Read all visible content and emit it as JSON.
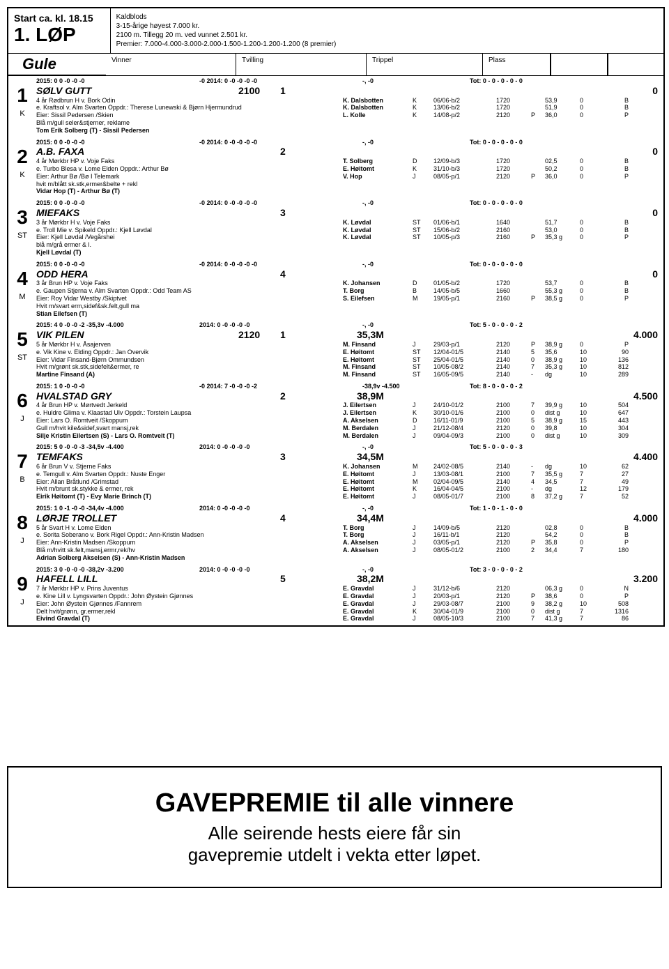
{
  "header": {
    "start": "Start ca. kl. 18.15",
    "lop": "1. LØP",
    "lines": [
      "Kaldblods",
      "3-15-årige høyest 7.000 kr.",
      "2100 m. Tillegg 20 m. ved vunnet 2.501 kr.",
      "Premier: 7.000-4.000-3.000-2.000-1.500-1.200-1.200-1.200 (8 premier)"
    ]
  },
  "bets": {
    "color": "Gule",
    "vinner": "Vinner",
    "tvilling": "Tvilling",
    "trippel": "Trippel",
    "plass": "Plass"
  },
  "entries": [
    {
      "num": "1",
      "letter": "K",
      "stat1": "2015:   0    0    -0    -0    -0",
      "stat2": "-0      2014:    0    -0    -0    -0    -0",
      "stat3": "-,           -0",
      "stat4": "Tot: 0 - 0 - 0 - 0 - 0",
      "name": "SØLV GUTT",
      "post": "2100",
      "draw": "1",
      "odds": "0",
      "info": [
        "4 år Rødbrun H v. Bork Odin",
        "e. Kraftsol v. Alm Svarten  Oppdr.: Therese Lunewski & Bjørn Hjermundrud",
        "Eier: Sissil Pedersen /Skien",
        "Blå m/gull seler&stjerner, reklame"
      ],
      "trainer": "Tom Erik Solberg (T) - Sissil Pedersen",
      "results": [
        [
          "K. Dalsbotten",
          "K",
          "06/06-b/2",
          "1720",
          "",
          "53,9",
          "0",
          "B"
        ],
        [
          "K. Dalsbotten",
          "K",
          "13/06-b/2",
          "1720",
          "",
          "51,9",
          "0",
          "B"
        ],
        [
          "L. Kolle",
          "K",
          "14/08-p/2",
          "2120",
          "P",
          "36,0",
          "0",
          "P"
        ]
      ]
    },
    {
      "num": "2",
      "letter": "K",
      "stat1": "2015:   0    0    -0    -0    -0",
      "stat2": "-0      2014:    0    -0    -0    -0    -0",
      "stat3": "-,           -0",
      "stat4": "Tot: 0 - 0 - 0 - 0 - 0",
      "name": "A.B. FAXA",
      "post": "",
      "draw": "2",
      "odds": "0",
      "info": [
        "4 år Mørkbr HP v. Voje Faks",
        "e. Turbo Blesa v. Lome Elden  Oppdr.: Arthur Bø",
        "Eier: Arthur Bø /Bø I Telemark",
        "hvit m/blått sk.stk,ermer&belte + rekl"
      ],
      "trainer": "Vidar Hop (T) - Arthur Bø (T)",
      "results": [
        [
          "T. Solberg",
          "D",
          "12/09-b/3",
          "1720",
          "",
          "02,5",
          "0",
          "B"
        ],
        [
          "E. Høitomt",
          "K",
          "31/10-b/3",
          "1720",
          "",
          "50,2",
          "0",
          "B"
        ],
        [
          "V. Hop",
          "J",
          "08/05-p/1",
          "2120",
          "P",
          "36,0",
          "0",
          "P"
        ]
      ]
    },
    {
      "num": "3",
      "letter": "ST",
      "stat1": "2015:   0    0    -0    -0    -0",
      "stat2": "-0      2014:    0    -0    -0    -0    -0",
      "stat3": "-,           -0",
      "stat4": "Tot: 0 - 0 - 0 - 0 - 0",
      "name": "MIEFAKS",
      "post": "",
      "draw": "3",
      "odds": "0",
      "info": [
        "3 år Mørkbr H v. Voje Faks",
        "e. Troll Mie v. Spikeld  Oppdr.: Kjell Løvdal",
        "Eier: Kjell Løvdal /Vegårshei",
        "blå m/grå ermer & l."
      ],
      "trainer": "Kjell Løvdal (T)",
      "results": [
        [
          "K. Løvdal",
          "ST",
          "01/06-b/1",
          "1640",
          "",
          "51,7",
          "0",
          "B"
        ],
        [
          "K. Løvdal",
          "ST",
          "15/06-b/2",
          "2160",
          "",
          "53,0",
          "0",
          "B"
        ],
        [
          "K. Løvdal",
          "ST",
          "10/05-p/3",
          "2160",
          "P",
          "35,3 g",
          "0",
          "P"
        ]
      ]
    },
    {
      "num": "4",
      "letter": "M",
      "stat1": "2015:   0    0    -0    -0    -0",
      "stat2": "-0      2014:    0    -0    -0    -0    -0",
      "stat3": "-,           -0",
      "stat4": "Tot: 0 - 0 - 0 - 0 - 0",
      "name": "ODD HERA",
      "post": "",
      "draw": "4",
      "odds": "0",
      "info": [
        "3 år Brun HP v. Voje Faks",
        "e. Gaupen Stjerna v. Alm Svarten  Oppdr.: Odd Team AS",
        "Eier: Roy Vidar Westby /Skiptvet",
        "Hvit m/svart erm,sidef&sk.felt,gull ma"
      ],
      "trainer": "Stian Eilefsen (T)",
      "results": [
        [
          "K. Johansen",
          "D",
          "01/05-b/2",
          "1720",
          "",
          "53,7",
          "0",
          "B"
        ],
        [
          "T. Borg",
          "B",
          "14/05-b/5",
          "1660",
          "",
          "55,3 g",
          "0",
          "B"
        ],
        [
          "S. Eilefsen",
          "M",
          "19/05-p/1",
          "2160",
          "P",
          "38,5 g",
          "0",
          "P"
        ]
      ]
    },
    {
      "num": "5",
      "letter": "ST",
      "stat1": "2015:   4    0    -0    -0    -2    -35,3v    -4.000",
      "stat2": "2014:    0    -0    -0    -0    -0",
      "stat3": "-,           -0",
      "stat4": "Tot: 5 - 0 - 0 - 0 - 2",
      "name": "VIK PILEN",
      "post": "2120",
      "draw": "1",
      "dist": "35,3M",
      "odds": "4.000",
      "info": [
        "5 år Mørkbr H v. Åsajerven",
        "e. Vik Kine v. Elding  Oppdr.: Jan Overvik",
        "Eier: Vidar Finsand-Bjørn Ommundsen",
        "Hvit m/grønt sk.stk,sidefelt&ermer, re"
      ],
      "trainer": "Martine Finsand (A)",
      "results": [
        [
          "M. Finsand",
          "J",
          "29/03-p/1",
          "2120",
          "P",
          "38,9 g",
          "0",
          "P"
        ],
        [
          "E. Høitomt",
          "ST",
          "12/04-01/5",
          "2140",
          "5",
          "35,6",
          "10",
          "90"
        ],
        [
          "E. Høitomt",
          "ST",
          "25/04-01/5",
          "2140",
          "0",
          "38,9 g",
          "10",
          "136"
        ],
        [
          "M. Finsand",
          "ST",
          "10/05-08/2",
          "2140",
          "7",
          "35,3 g",
          "10",
          "812"
        ],
        [
          "M. Finsand",
          "ST",
          "16/05-09/5",
          "2140",
          "-",
          "dg",
          "10",
          "289"
        ]
      ]
    },
    {
      "num": "6",
      "letter": "J",
      "stat1": "2015:   1    0    -0    -0    -0",
      "stat2": "-0      2014:    7    -0    -0    -0    -2",
      "stat3": "-38,9v      -4.500",
      "stat4": "Tot: 8 - 0 - 0 - 0 - 2",
      "name": "HVALSTAD GRY",
      "post": "",
      "draw": "2",
      "dist": "38,9M",
      "odds": "4.500",
      "info": [
        "4 år Brun HP v. Mørtvedt Jerkeld",
        "e. Huldre Glima v. Klaastad Ulv  Oppdr.: Torstein Laupsa",
        "Eier: Lars O. Romtveit /Skoppum",
        "Gull m/hvit kile&sidef,svart mansj,rek"
      ],
      "trainer": "Silje Kristin Eilertsen (S) - Lars O. Romtveit (T)",
      "results": [
        [
          "J. Eilertsen",
          "J",
          "24/10-01/2",
          "2100",
          "7",
          "39,9 g",
          "10",
          "504"
        ],
        [
          "J. Eilertsen",
          "K",
          "30/10-01/6",
          "2100",
          "0",
          "dist g",
          "10",
          "647"
        ],
        [
          "A. Akselsen",
          "D",
          "16/11-01/9",
          "2100",
          "5",
          "38,9 g",
          "15",
          "443"
        ],
        [
          "M. Berdalen",
          "J",
          "21/12-08/4",
          "2120",
          "0",
          "39,8",
          "10",
          "304"
        ],
        [
          "M. Berdalen",
          "J",
          "09/04-09/3",
          "2100",
          "0",
          "dist g",
          "10",
          "309"
        ]
      ]
    },
    {
      "num": "7",
      "letter": "B",
      "stat1": "2015:   5    0    -0    -0    -3    -34,5v    -4.400",
      "stat2": "2014:    0    -0    -0    -0    -0",
      "stat3": "-,           -0",
      "stat4": "Tot: 5 - 0 - 0 - 0 - 3",
      "name": "TEMFAKS",
      "post": "",
      "draw": "3",
      "dist": "34,5M",
      "odds": "4.400",
      "info": [
        "6 år Brun V v. Stjerne Faks",
        "e. Temgull v. Alm Svarten  Oppdr.: Nuste Enger",
        "Eier: Allan Bråtlund /Grimstad",
        "Hvit m/brunt sk.stykke & ermer, rek"
      ],
      "trainer": "Eirik Høitomt (T) - Evy Marie Brinch (T)",
      "results": [
        [
          "K. Johansen",
          "M",
          "24/02-08/5",
          "2140",
          "-",
          "dg",
          "10",
          "62"
        ],
        [
          "E. Høitomt",
          "J",
          "13/03-08/1",
          "2100",
          "7",
          "35,5 g",
          "7",
          "27"
        ],
        [
          "E. Høitomt",
          "M",
          "02/04-09/5",
          "2140",
          "4",
          "34,5",
          "7",
          "49"
        ],
        [
          "E. Høitomt",
          "K",
          "16/04-04/5",
          "2100",
          "-",
          "dg",
          "12",
          "179"
        ],
        [
          "E. Høitomt",
          "J",
          "08/05-01/7",
          "2100",
          "8",
          "37,2 g",
          "7",
          "52"
        ]
      ]
    },
    {
      "num": "8",
      "letter": "J",
      "stat1": "2015:   1    0    -1    -0    -0    -34,4v    -4.000",
      "stat2": "2014:    0    -0    -0    -0    -0",
      "stat3": "-,           -0",
      "stat4": "Tot: 1 - 0 - 1 - 0 - 0",
      "name": "LØRJE TROLLET",
      "post": "",
      "draw": "4",
      "dist": "34,4M",
      "odds": "4.000",
      "info": [
        "5 år Svart H v. Lome Elden",
        "e. Sorita Soberano v. Bork Rigel  Oppdr.: Ann-Kristin Madsen",
        "Eier: Ann-Kristin Madsen /Skoppum",
        "Blå m/hvitt sk.felt,mansj,ermr,rek/hv"
      ],
      "trainer": "Adrian Solberg Akselsen (S) - Ann-Kristin Madsen",
      "results": [
        [
          "T. Borg",
          "J",
          "14/09-b/5",
          "2120",
          "",
          "02,8",
          "0",
          "B"
        ],
        [
          "T. Borg",
          "J",
          "16/11-b/1",
          "2120",
          "",
          "54,2",
          "0",
          "B"
        ],
        [
          "A. Akselsen",
          "J",
          "03/05-p/1",
          "2120",
          "P",
          "35,8",
          "0",
          "P"
        ],
        [
          "A. Akselsen",
          "J",
          "08/05-01/2",
          "2100",
          "2",
          "34,4",
          "7",
          "180"
        ]
      ]
    },
    {
      "num": "9",
      "letter": "J",
      "stat1": "2015:   3    0    -0    -0    -0    -38,2v    -3.200",
      "stat2": "2014:    0    -0    -0    -0    -0",
      "stat3": "-,           -0",
      "stat4": "Tot: 3 - 0 - 0 - 0 - 2",
      "name": "HAFELL LILL",
      "post": "",
      "draw": "5",
      "dist": "38,2M",
      "odds": "3.200",
      "info": [
        "7 år Mørkbr HP v. Prins Juventus",
        "e. Kine Lill v. Lyngsvarten  Oppdr.: John Øystein Gjønnes",
        "Eier: John Øystein Gjønnes /Fannrem",
        "Delt hvit/grønn, gr.ermer,rekl"
      ],
      "trainer": "Eivind Gravdal (T)",
      "results": [
        [
          "E. Gravdal",
          "J",
          "31/12-b/6",
          "2120",
          "",
          "06,3 g",
          "0",
          "N"
        ],
        [
          "E. Gravdal",
          "J",
          "20/03-p/1",
          "2120",
          "P",
          "38,6",
          "0",
          "P"
        ],
        [
          "E. Gravdal",
          "J",
          "29/03-08/7",
          "2100",
          "9",
          "38,2 g",
          "10",
          "508"
        ],
        [
          "E. Gravdal",
          "K",
          "30/04-01/9",
          "2100",
          "0",
          "dist g",
          "7",
          "1316"
        ],
        [
          "E. Gravdal",
          "J",
          "08/05-10/3",
          "2100",
          "7",
          "41,3 g",
          "7",
          "86"
        ]
      ]
    }
  ],
  "footer": {
    "f1": "GAVEPREMIE til alle vinnere",
    "f2": "Alle seirende hests eiere får sin",
    "f3": "gavepremie utdelt i vekta etter løpet."
  }
}
